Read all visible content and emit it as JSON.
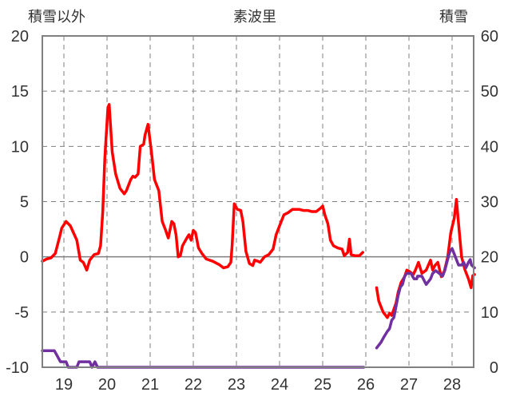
{
  "chart_data": {
    "type": "line",
    "title": "素波里",
    "left_axis_label": "積雪以外",
    "right_axis_label": "積雪",
    "left_ylim": [
      -10,
      20
    ],
    "left_yticks": [
      20,
      15,
      10,
      5,
      0,
      -5,
      -10
    ],
    "right_ylim": [
      0,
      60
    ],
    "right_yticks": [
      60,
      50,
      40,
      30,
      20,
      10,
      0
    ],
    "x_ticks": [
      "19",
      "20",
      "21",
      "22",
      "23",
      "24",
      "25",
      "26",
      "27",
      "28"
    ],
    "xlim": [
      18.5,
      28.5
    ],
    "grid": true,
    "colors": {
      "temperature": "#ff0000",
      "snow": "#7030a0",
      "frame": "#808080",
      "grid": "#7f7f7f"
    },
    "series": [
      {
        "axis": "left",
        "color": "#ff0000",
        "segments": [
          [
            [
              18.5,
              -0.4
            ],
            [
              18.6,
              -0.2
            ],
            [
              18.7,
              -0.1
            ],
            [
              18.8,
              0.3
            ],
            [
              18.9,
              1.8
            ],
            [
              18.95,
              2.6
            ],
            [
              19.05,
              3.2
            ],
            [
              19.15,
              2.8
            ],
            [
              19.3,
              1.5
            ],
            [
              19.38,
              -0.3
            ],
            [
              19.45,
              -0.5
            ],
            [
              19.53,
              -1.2
            ],
            [
              19.6,
              -0.3
            ],
            [
              19.7,
              0.2
            ],
            [
              19.8,
              0.3
            ],
            [
              19.85,
              1.0
            ],
            [
              19.9,
              4.0
            ],
            [
              19.95,
              9.0
            ],
            [
              20.02,
              13.5
            ],
            [
              20.05,
              13.8
            ],
            [
              20.12,
              9.5
            ],
            [
              20.2,
              7.5
            ],
            [
              20.3,
              6.2
            ],
            [
              20.4,
              5.7
            ],
            [
              20.45,
              6.0
            ],
            [
              20.55,
              7.0
            ],
            [
              20.6,
              7.3
            ],
            [
              20.65,
              7.2
            ],
            [
              20.72,
              7.5
            ],
            [
              20.77,
              10.0
            ],
            [
              20.85,
              10.2
            ],
            [
              20.88,
              11.0
            ],
            [
              20.95,
              12.0
            ],
            [
              21.03,
              9.5
            ],
            [
              21.1,
              7.0
            ],
            [
              21.2,
              6.0
            ],
            [
              21.28,
              3.2
            ],
            [
              21.35,
              2.5
            ],
            [
              21.42,
              1.7
            ],
            [
              21.5,
              3.2
            ],
            [
              21.55,
              3.0
            ],
            [
              21.6,
              2.0
            ],
            [
              21.65,
              0.0
            ],
            [
              21.7,
              0.1
            ],
            [
              21.75,
              1.0
            ],
            [
              21.85,
              1.7
            ],
            [
              21.9,
              2.0
            ],
            [
              21.95,
              1.5
            ],
            [
              22.0,
              2.4
            ],
            [
              22.05,
              2.2
            ],
            [
              22.12,
              0.8
            ],
            [
              22.2,
              0.3
            ],
            [
              22.3,
              -0.2
            ],
            [
              22.45,
              -0.4
            ],
            [
              22.6,
              -0.7
            ],
            [
              22.7,
              -1.0
            ],
            [
              22.8,
              -0.9
            ],
            [
              22.87,
              -0.5
            ],
            [
              22.9,
              1.0
            ],
            [
              22.95,
              4.8
            ],
            [
              23.02,
              4.3
            ],
            [
              23.1,
              4.2
            ],
            [
              23.15,
              3.2
            ],
            [
              23.22,
              0.5
            ],
            [
              23.3,
              -0.6
            ],
            [
              23.38,
              -0.8
            ],
            [
              23.42,
              -0.3
            ],
            [
              23.5,
              -0.4
            ],
            [
              23.55,
              -0.5
            ],
            [
              23.65,
              0.0
            ],
            [
              23.75,
              0.2
            ],
            [
              23.85,
              0.7
            ],
            [
              23.92,
              2.0
            ],
            [
              24.0,
              2.8
            ],
            [
              24.1,
              3.8
            ],
            [
              24.2,
              4.0
            ],
            [
              24.3,
              4.3
            ],
            [
              24.45,
              4.3
            ],
            [
              24.55,
              4.2
            ],
            [
              24.65,
              4.2
            ],
            [
              24.75,
              4.1
            ],
            [
              24.85,
              4.1
            ],
            [
              24.95,
              4.4
            ],
            [
              25.0,
              4.6
            ],
            [
              25.05,
              3.8
            ],
            [
              25.12,
              3.0
            ],
            [
              25.18,
              1.5
            ],
            [
              25.25,
              1.0
            ],
            [
              25.35,
              0.8
            ],
            [
              25.45,
              0.7
            ],
            [
              25.5,
              0.1
            ],
            [
              25.58,
              0.4
            ],
            [
              25.62,
              1.6
            ],
            [
              25.66,
              0.2
            ],
            [
              25.75,
              0.1
            ],
            [
              25.85,
              0.1
            ],
            [
              25.93,
              0.4
            ]
          ],
          [
            [
              26.25,
              -2.8
            ],
            [
              26.3,
              -4.0
            ],
            [
              26.4,
              -5.0
            ],
            [
              26.5,
              -5.5
            ],
            [
              26.55,
              -5.1
            ],
            [
              26.6,
              -5.3
            ],
            [
              26.7,
              -4.2
            ],
            [
              26.75,
              -3.2
            ],
            [
              26.82,
              -2.3
            ],
            [
              26.9,
              -1.8
            ],
            [
              26.95,
              -1.2
            ],
            [
              27.0,
              -1.3
            ],
            [
              27.1,
              -1.6
            ],
            [
              27.15,
              -1.2
            ],
            [
              27.22,
              -0.5
            ],
            [
              27.3,
              -1.5
            ],
            [
              27.4,
              -1.2
            ],
            [
              27.5,
              -0.3
            ],
            [
              27.55,
              -1.2
            ],
            [
              27.6,
              -0.8
            ],
            [
              27.67,
              -0.5
            ],
            [
              27.75,
              -1.8
            ],
            [
              27.82,
              -1.3
            ],
            [
              27.9,
              0.0
            ],
            [
              27.97,
              2.2
            ],
            [
              28.05,
              3.5
            ],
            [
              28.1,
              5.2
            ],
            [
              28.15,
              3.0
            ],
            [
              28.22,
              0.0
            ],
            [
              28.3,
              -1.2
            ],
            [
              28.38,
              -2.0
            ],
            [
              28.44,
              -2.8
            ],
            [
              28.48,
              -1.7
            ],
            [
              28.52,
              -1.6
            ]
          ]
        ]
      },
      {
        "axis": "right",
        "color": "#7030a0",
        "segments": [
          [
            [
              18.5,
              3.0
            ],
            [
              18.78,
              3.0
            ],
            [
              18.85,
              2.0
            ],
            [
              18.92,
              1.0
            ],
            [
              19.0,
              1.0
            ],
            [
              19.05,
              1.0
            ],
            [
              19.1,
              0.0
            ],
            [
              19.3,
              0.0
            ],
            [
              19.35,
              1.0
            ],
            [
              19.6,
              1.0
            ],
            [
              19.65,
              0.0
            ],
            [
              19.72,
              1.0
            ],
            [
              19.78,
              0.0
            ],
            [
              25.95,
              0.0
            ]
          ],
          [
            [
              26.25,
              3.5
            ],
            [
              26.3,
              4.0
            ],
            [
              26.35,
              4.5
            ],
            [
              26.42,
              5.5
            ],
            [
              26.5,
              6.5
            ],
            [
              26.55,
              7.0
            ],
            [
              26.6,
              8.5
            ],
            [
              26.65,
              9.0
            ],
            [
              26.7,
              11.0
            ],
            [
              26.75,
              13.0
            ],
            [
              26.8,
              14.5
            ],
            [
              26.85,
              15.0
            ],
            [
              26.9,
              16.5
            ],
            [
              26.95,
              17.0
            ],
            [
              27.05,
              17.0
            ],
            [
              27.08,
              16.5
            ],
            [
              27.12,
              16.0
            ],
            [
              27.18,
              16.0
            ],
            [
              27.2,
              16.5
            ],
            [
              27.3,
              16.5
            ],
            [
              27.4,
              15.0
            ],
            [
              27.5,
              16.0
            ],
            [
              27.55,
              17.0
            ],
            [
              27.62,
              17.5
            ],
            [
              27.7,
              17.0
            ],
            [
              27.78,
              16.5
            ],
            [
              27.83,
              17.5
            ],
            [
              27.88,
              19.0
            ],
            [
              27.95,
              21.0
            ],
            [
              28.0,
              21.5
            ],
            [
              28.05,
              20.5
            ],
            [
              28.1,
              19.5
            ],
            [
              28.15,
              18.5
            ],
            [
              28.22,
              18.5
            ],
            [
              28.27,
              19.0
            ],
            [
              28.32,
              18.0
            ],
            [
              28.38,
              19.0
            ],
            [
              28.42,
              19.5
            ],
            [
              28.45,
              18.5
            ],
            [
              28.52,
              18.0
            ]
          ]
        ]
      }
    ]
  }
}
